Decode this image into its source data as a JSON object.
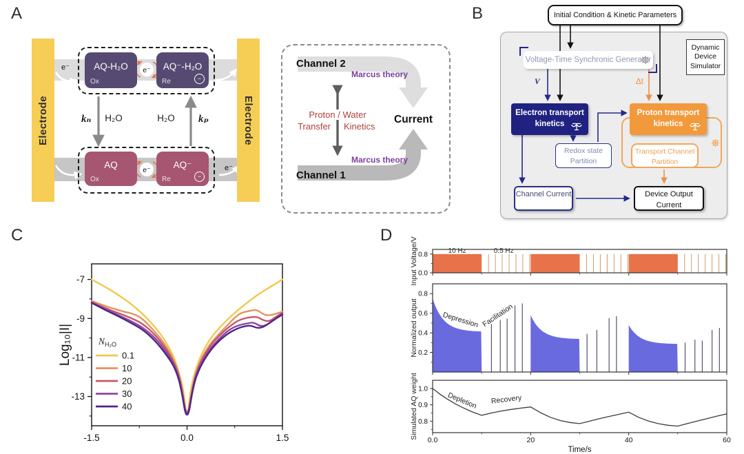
{
  "figure": {
    "panel_a_label": "A",
    "panel_b_label": "B",
    "panel_c_label": "C",
    "panel_d_label": "D"
  },
  "panel_a": {
    "electrode_left": "Electrode",
    "electrode_right": "Electrode",
    "top_box1_title": "AQ-H₂O",
    "top_box1_state": "Ox",
    "top_box2_title": "AQ⁻-H₂O",
    "top_box2_state": "Re",
    "bottom_box1_title": "AQ",
    "bottom_box1_state": "Ox",
    "bottom_box2_title": "AQ⁻",
    "bottom_box2_state": "Re",
    "electron_label": "e⁻",
    "minus_symbol": "−",
    "k_n": "kₙ",
    "k_p": "kₚ",
    "h2o": "H₂O",
    "colors": {
      "electrode": "#F6CE55",
      "oxidized": "#564A72",
      "reduced": "#A65670",
      "band_top": "#DCDCDC",
      "band_bottom": "#C6C6C6",
      "cycle_arrow": "#E07856"
    },
    "channel": {
      "channel2": "Channel 2",
      "channel1": "Channel 1",
      "marcus_top": "Marcus theory",
      "marcus_bottom": "Marcus theory",
      "transfer_l1": "Proton / Water",
      "transfer_l2a": "Transfer",
      "transfer_l2b": "Kinetics",
      "current": "Current",
      "marcus_color": "#7B3FA0",
      "transfer_color": "#B0403C"
    }
  },
  "panel_b": {
    "init_box": "Initial Condition & Kinetic Parameters",
    "simulator_box": "Dynamic Device Simulator",
    "generator_box": "Voltage-Time Synchronic Generator",
    "electron_box": "Electron transport kinetics",
    "proton_box": "Proton transport kinetics",
    "redox_box": "Redox state Partition",
    "transport_box": "Transport Channel Partition",
    "channel_current_box": "Channel Current",
    "device_output_box": "Device Output Current",
    "v_label": "V",
    "dt_label": "Δt",
    "colors": {
      "navy": "#23288A",
      "orange": "#F2993B",
      "orange_light": "#F0A659",
      "panel_bg": "#EDEDED"
    }
  },
  "chart_data": [
    {
      "id": "iv_curves",
      "type": "line",
      "title": "",
      "xlabel": "",
      "ylabel": "Log₁₀|I|",
      "xlim": [
        -1.5,
        1.5
      ],
      "ylim": [
        -14.5,
        -6.2
      ],
      "xticks": [
        {
          "v": -1.5,
          "label": "-1.5"
        },
        {
          "v": 0,
          "label": "0.0"
        },
        {
          "v": 1.5,
          "label": "1.5"
        }
      ],
      "xticks_minor": [
        -0.75,
        0.75
      ],
      "yticks": [
        {
          "v": -7,
          "label": "-7"
        },
        {
          "v": -9,
          "label": "-9"
        },
        {
          "v": -11,
          "label": "-11"
        },
        {
          "v": -13,
          "label": "-13"
        }
      ],
      "yticks_minor": [
        -8,
        -10,
        -12,
        -14
      ],
      "legend": {
        "title_main": "N",
        "title_sub": "H₂O",
        "position": "inside-left"
      },
      "grid": false,
      "series": [
        {
          "name": "0.1",
          "color": "#EFC94F",
          "points": [
            [
              -1.5,
              -7.0
            ],
            [
              -1.3,
              -7.35
            ],
            [
              -1.1,
              -7.75
            ],
            [
              -0.9,
              -8.2
            ],
            [
              -0.7,
              -8.75
            ],
            [
              -0.5,
              -9.45
            ],
            [
              -0.35,
              -10.1
            ],
            [
              -0.2,
              -11.0
            ],
            [
              -0.1,
              -12.05
            ],
            [
              -0.05,
              -12.8
            ],
            [
              0,
              -14.3
            ],
            [
              0.05,
              -12.8
            ],
            [
              0.1,
              -12.0
            ],
            [
              0.2,
              -11.0
            ],
            [
              0.35,
              -10.1
            ],
            [
              0.5,
              -9.5
            ],
            [
              0.7,
              -8.85
            ],
            [
              0.9,
              -8.3
            ],
            [
              1.1,
              -7.8
            ],
            [
              1.3,
              -7.4
            ],
            [
              1.5,
              -7.0
            ]
          ]
        },
        {
          "name": "10",
          "color": "#E2945E",
          "points": [
            [
              -1.5,
              -8.1
            ],
            [
              -1.3,
              -8.35
            ],
            [
              -1.15,
              -8.5
            ],
            [
              -1.0,
              -8.65
            ],
            [
              -0.85,
              -8.75
            ],
            [
              -0.7,
              -9.0
            ],
            [
              -0.5,
              -9.7
            ],
            [
              -0.35,
              -10.3
            ],
            [
              -0.2,
              -11.15
            ],
            [
              -0.1,
              -12.15
            ],
            [
              0,
              -14.3
            ],
            [
              0.1,
              -12.2
            ],
            [
              0.2,
              -11.2
            ],
            [
              0.35,
              -10.35
            ],
            [
              0.5,
              -9.8
            ],
            [
              0.65,
              -9.3
            ],
            [
              0.75,
              -8.95
            ],
            [
              0.85,
              -8.7
            ],
            [
              1.0,
              -8.6
            ],
            [
              1.1,
              -8.55
            ],
            [
              1.2,
              -8.8
            ],
            [
              1.3,
              -8.85
            ],
            [
              1.4,
              -8.75
            ],
            [
              1.5,
              -8.65
            ]
          ]
        },
        {
          "name": "20",
          "color": "#C6566B",
          "points": [
            [
              -1.5,
              -8.15
            ],
            [
              -1.3,
              -8.45
            ],
            [
              -1.1,
              -8.7
            ],
            [
              -0.9,
              -8.95
            ],
            [
              -0.7,
              -9.25
            ],
            [
              -0.5,
              -9.85
            ],
            [
              -0.35,
              -10.45
            ],
            [
              -0.2,
              -11.25
            ],
            [
              -0.1,
              -12.2
            ],
            [
              0,
              -14.35
            ],
            [
              0.1,
              -12.25
            ],
            [
              0.2,
              -11.3
            ],
            [
              0.35,
              -10.45
            ],
            [
              0.5,
              -9.9
            ],
            [
              0.65,
              -9.45
            ],
            [
              0.8,
              -9.1
            ],
            [
              0.95,
              -8.95
            ],
            [
              1.1,
              -8.9
            ],
            [
              1.2,
              -9.1
            ],
            [
              1.3,
              -9.15
            ],
            [
              1.4,
              -8.9
            ],
            [
              1.5,
              -8.7
            ]
          ]
        },
        {
          "name": "30",
          "color": "#9046A0",
          "points": [
            [
              -1.5,
              -8.2
            ],
            [
              -1.3,
              -8.5
            ],
            [
              -1.1,
              -8.8
            ],
            [
              -0.9,
              -9.1
            ],
            [
              -0.7,
              -9.45
            ],
            [
              -0.5,
              -10.0
            ],
            [
              -0.35,
              -10.6
            ],
            [
              -0.2,
              -11.35
            ],
            [
              -0.1,
              -12.3
            ],
            [
              0,
              -14.4
            ],
            [
              0.1,
              -12.3
            ],
            [
              0.2,
              -11.4
            ],
            [
              0.35,
              -10.6
            ],
            [
              0.5,
              -10.05
            ],
            [
              0.65,
              -9.6
            ],
            [
              0.8,
              -9.35
            ],
            [
              0.95,
              -9.25
            ],
            [
              1.05,
              -9.2
            ],
            [
              1.15,
              -9.4
            ],
            [
              1.25,
              -9.35
            ],
            [
              1.4,
              -9.0
            ],
            [
              1.5,
              -8.75
            ]
          ]
        },
        {
          "name": "40",
          "color": "#502588",
          "points": [
            [
              -1.5,
              -8.2
            ],
            [
              -1.3,
              -8.55
            ],
            [
              -1.1,
              -8.85
            ],
            [
              -0.9,
              -9.2
            ],
            [
              -0.7,
              -9.55
            ],
            [
              -0.5,
              -10.15
            ],
            [
              -0.35,
              -10.75
            ],
            [
              -0.2,
              -11.45
            ],
            [
              -0.1,
              -12.4
            ],
            [
              0,
              -14.45
            ],
            [
              0.1,
              -12.4
            ],
            [
              0.2,
              -11.5
            ],
            [
              0.35,
              -10.7
            ],
            [
              0.5,
              -10.15
            ],
            [
              0.65,
              -9.75
            ],
            [
              0.8,
              -9.5
            ],
            [
              0.9,
              -9.4
            ],
            [
              1.0,
              -9.35
            ],
            [
              1.1,
              -9.5
            ],
            [
              1.2,
              -9.45
            ],
            [
              1.35,
              -9.1
            ],
            [
              1.5,
              -8.8
            ]
          ]
        }
      ]
    },
    {
      "id": "synaptic_simulation",
      "type": "area",
      "xlabel": "Time/s",
      "xlim": [
        0,
        60
      ],
      "xticks": [
        {
          "v": 0,
          "label": "0.0"
        },
        {
          "v": 20,
          "label": "20"
        },
        {
          "v": 40,
          "label": "40"
        },
        {
          "v": 60,
          "label": "60"
        }
      ],
      "xticks_minor": [
        10,
        30,
        50
      ],
      "subplots": [
        {
          "name": "input_voltage",
          "ylabel": "Input Voltage/V",
          "ylim": [
            0,
            1.0
          ],
          "yticks": [
            {
              "v": 0.8,
              "label": "0.8"
            },
            {
              "v": 0.0,
              "label": "0.0"
            }
          ],
          "yticks_minor": [
            0.4
          ],
          "pulse_amplitude": 0.8,
          "pulse_blocks": [
            [
              0,
              10
            ],
            [
              20,
              30
            ],
            [
              40,
              50
            ]
          ],
          "sparse_pulses": [
            11.4,
            12.8,
            14.2,
            15.6,
            17,
            18.4,
            19.8,
            31.4,
            32.8,
            34.2,
            35.6,
            37,
            38.4,
            39.8,
            51.4,
            52.8,
            54.2,
            55.6,
            57,
            58.4,
            59.8
          ],
          "block_color": "#E8724A",
          "sparse_color": "#C89058",
          "labels": [
            {
              "text": "10 Hz",
              "x": 5,
              "y": 0.97
            },
            {
              "text": "0.5 Hz",
              "x": 14.5,
              "y": 0.97
            }
          ]
        },
        {
          "name": "normalized_output",
          "ylabel": "Normalized output",
          "ylim": [
            0,
            0.9
          ],
          "yticks": [
            {
              "v": 0.2,
              "label": "0.2"
            },
            {
              "v": 0.4,
              "label": "0.4"
            },
            {
              "v": 0.6,
              "label": "0.6"
            },
            {
              "v": 0.8,
              "label": "0.8"
            }
          ],
          "yticks_minor": [
            0.1,
            0.3,
            0.5,
            0.7
          ],
          "bursts": [
            {
              "t0": 0,
              "t1": 10,
              "start": 0.75,
              "end": 0.41,
              "tau": 2.2
            },
            {
              "t0": 20,
              "t1": 30,
              "start": 0.58,
              "end": 0.335,
              "tau": 2.2
            },
            {
              "t0": 40,
              "t1": 50,
              "start": 0.48,
              "end": 0.285,
              "tau": 2.2
            }
          ],
          "spikes": [
            [
              12,
              0.49
            ],
            [
              13.8,
              0.53
            ],
            [
              15.2,
              0.545
            ],
            [
              16.8,
              0.68
            ],
            [
              18.3,
              0.7
            ],
            [
              31.5,
              0.39
            ],
            [
              33.5,
              0.43
            ],
            [
              36,
              0.55
            ],
            [
              37.5,
              0.57
            ],
            [
              51.5,
              0.3
            ],
            [
              53.5,
              0.33
            ],
            [
              55,
              0.32
            ],
            [
              57,
              0.43
            ],
            [
              58.5,
              0.45
            ]
          ],
          "fill_color": "#6A6ADF",
          "spike_color": "#53536E",
          "annotations": [
            {
              "text": "Depression",
              "x": 2.0,
              "y": 0.565,
              "rotate": 17
            },
            {
              "text": "Facilitation",
              "x": 10.6,
              "y": 0.46,
              "rotate": -34
            }
          ]
        },
        {
          "name": "aq_weight",
          "ylabel": "Simulated AQ weight",
          "ylim": [
            0.73,
            1.05
          ],
          "yticks": [
            {
              "v": 1.0,
              "label": "1.0"
            },
            {
              "v": 0.9,
              "label": "0.9"
            },
            {
              "v": 0.8,
              "label": "0.8"
            }
          ],
          "yticks_minor": [
            0.75,
            0.85,
            0.95
          ],
          "points": [
            [
              0,
              1.0
            ],
            [
              1.5,
              0.965
            ],
            [
              3,
              0.935
            ],
            [
              4.5,
              0.908
            ],
            [
              6,
              0.885
            ],
            [
              8,
              0.858
            ],
            [
              10,
              0.836
            ],
            [
              12,
              0.85
            ],
            [
              14,
              0.862
            ],
            [
              16,
              0.872
            ],
            [
              18,
              0.88
            ],
            [
              20,
              0.887
            ],
            [
              22,
              0.852
            ],
            [
              24,
              0.824
            ],
            [
              26,
              0.804
            ],
            [
              28,
              0.792
            ],
            [
              30,
              0.785
            ],
            [
              32,
              0.8
            ],
            [
              34,
              0.815
            ],
            [
              36,
              0.829
            ],
            [
              38,
              0.842
            ],
            [
              40,
              0.855
            ],
            [
              42,
              0.824
            ],
            [
              44,
              0.801
            ],
            [
              46,
              0.785
            ],
            [
              48,
              0.775
            ],
            [
              50,
              0.77
            ],
            [
              52,
              0.786
            ],
            [
              54,
              0.801
            ],
            [
              56,
              0.816
            ],
            [
              58,
              0.831
            ],
            [
              60,
              0.845
            ]
          ],
          "line_color": "#3A3A3A",
          "annotations": [
            {
              "text": "Depletion",
              "x": 3.0,
              "y": 0.95,
              "rotate": 23
            },
            {
              "text": "Recovery",
              "x": 12.0,
              "y": 0.908,
              "rotate": -7
            }
          ]
        }
      ]
    }
  ]
}
